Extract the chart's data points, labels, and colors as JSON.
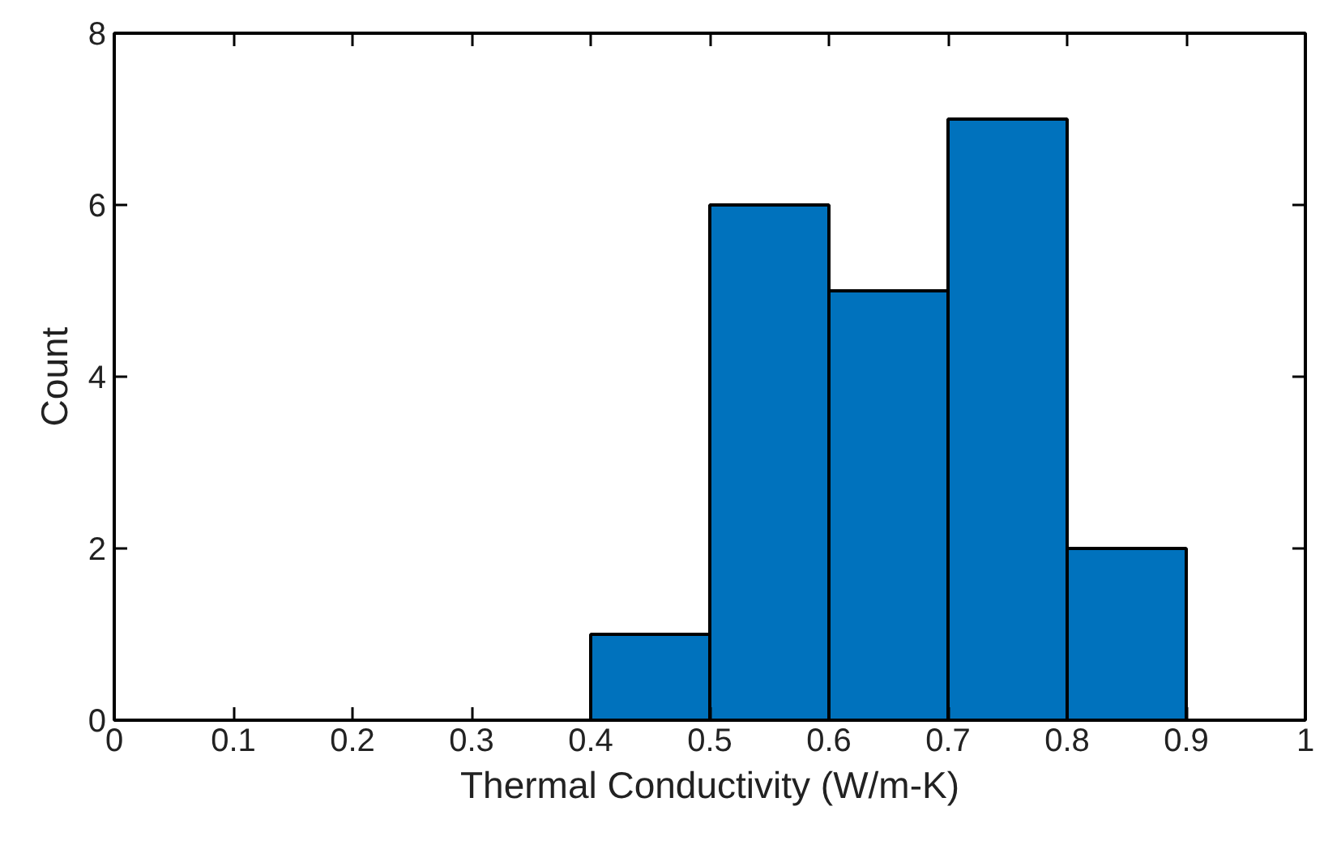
{
  "chart_data": {
    "type": "histogram",
    "xlabel": "Thermal Conductivity (W/m-K)",
    "ylabel": "Count",
    "bins": [
      0.4,
      0.5,
      0.6,
      0.7,
      0.8,
      0.9
    ],
    "values": [
      1,
      6,
      5,
      7,
      2
    ],
    "color": "#0072bd",
    "xlim": [
      0,
      1
    ],
    "xticks": [
      0,
      0.1,
      0.2,
      0.3,
      0.4,
      0.5,
      0.6,
      0.7,
      0.8,
      0.9,
      1
    ],
    "ylim": [
      0,
      8
    ],
    "yticks": [
      0,
      2,
      4,
      6,
      8
    ],
    "grid": false
  }
}
